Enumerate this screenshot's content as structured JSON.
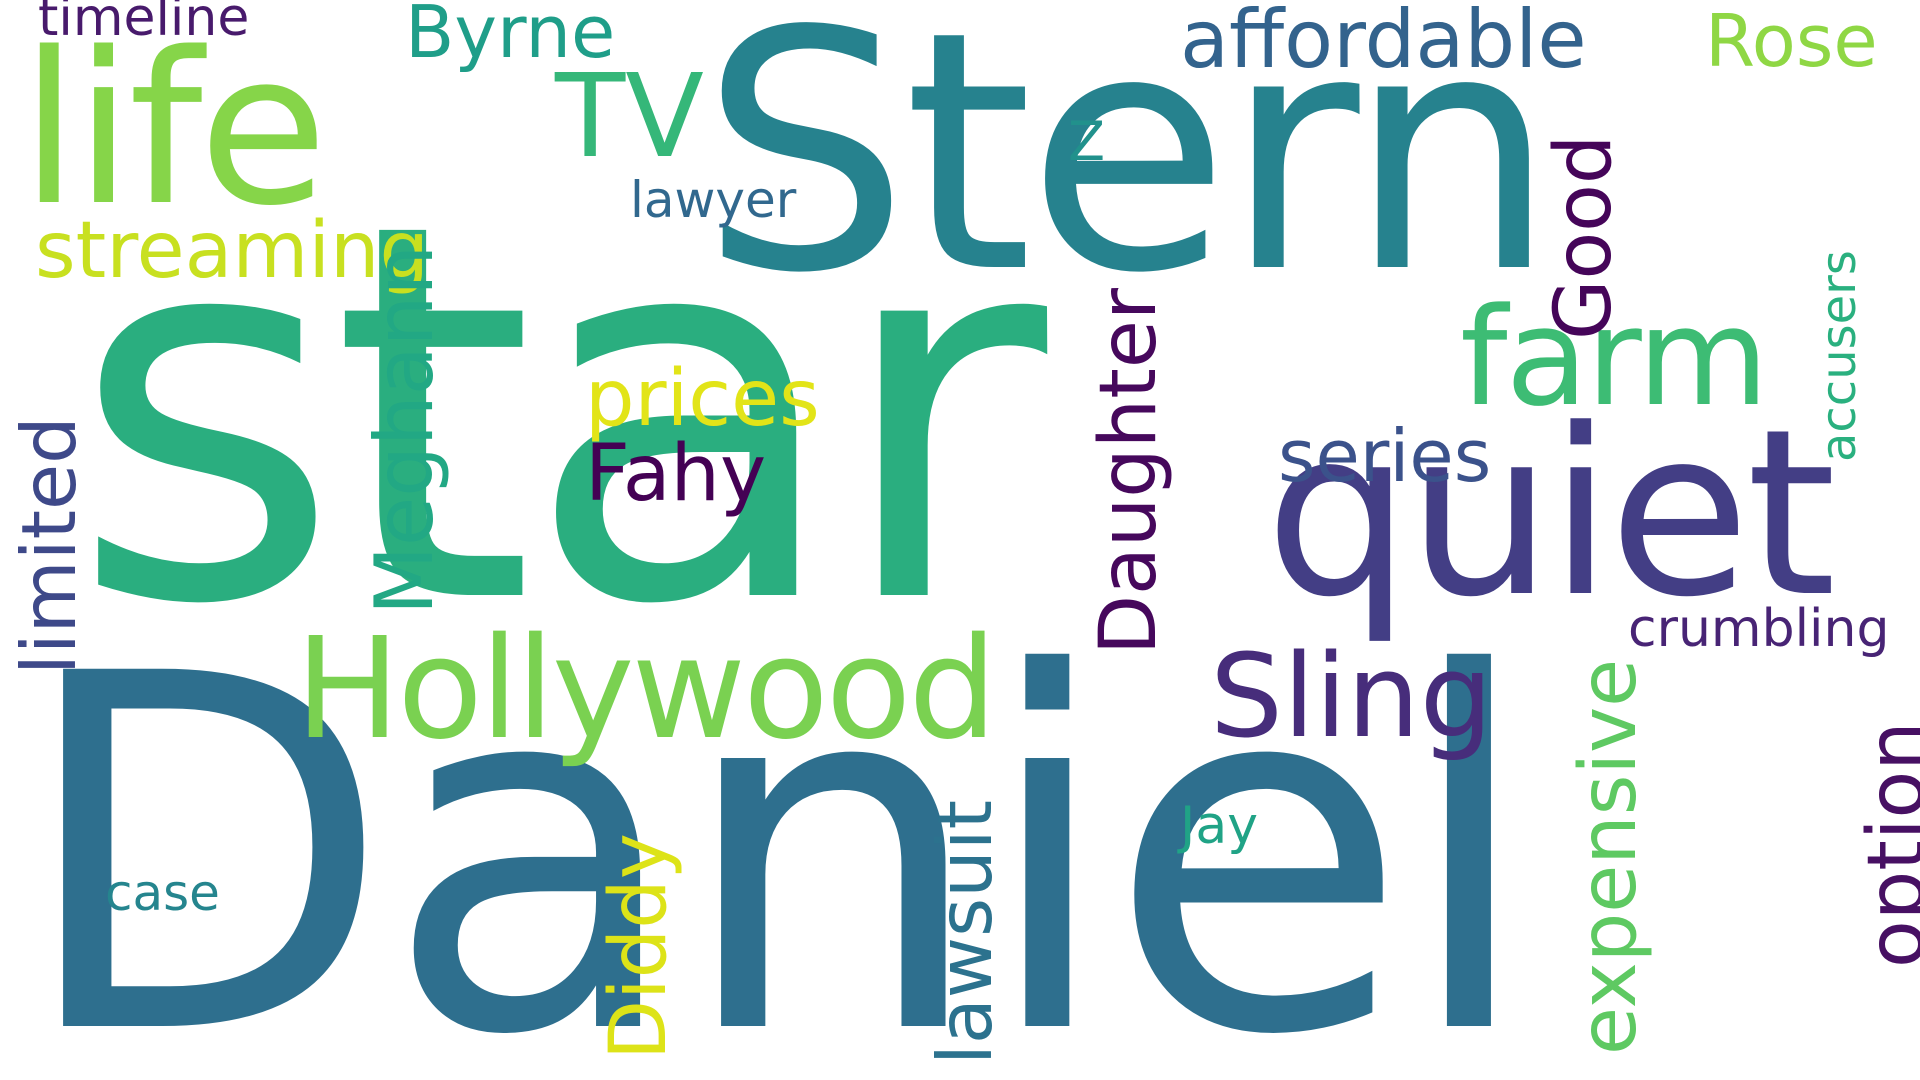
{
  "words": {
    "star": {
      "text": "star",
      "color": "#2aae7f"
    },
    "daniel": {
      "text": "Daniel",
      "color": "#2e6f8e"
    },
    "stern": {
      "text": "Stern",
      "color": "#26828e"
    },
    "life": {
      "text": "life",
      "color": "#86d549"
    },
    "quiet": {
      "text": "quiet",
      "color": "#433e85"
    },
    "hollywood": {
      "text": "Hollywood",
      "color": "#7ad151"
    },
    "farm": {
      "text": "farm",
      "color": "#3dbc74"
    },
    "tv": {
      "text": "TV",
      "color": "#35b779"
    },
    "sling": {
      "text": "Sling",
      "color": "#472d7b"
    },
    "affordable": {
      "text": "affordable",
      "color": "#33638d"
    },
    "byrne": {
      "text": "Byrne",
      "color": "#1f9e89"
    },
    "rose": {
      "text": "Rose",
      "color": "#8fd744"
    },
    "timeline": {
      "text": "timeline",
      "color": "#481a6c"
    },
    "streaming": {
      "text": "streaming",
      "color": "#c8e020"
    },
    "lawyer": {
      "text": "lawyer",
      "color": "#31688e"
    },
    "z": {
      "text": "Z",
      "color": "#21918c"
    },
    "prices": {
      "text": "prices",
      "color": "#e2e418"
    },
    "fahy": {
      "text": "Fahy",
      "color": "#440154"
    },
    "series": {
      "text": "series",
      "color": "#3b528b"
    },
    "crumbling": {
      "text": "crumbling",
      "color": "#482475"
    },
    "jay": {
      "text": "Jay",
      "color": "#20a386"
    },
    "case": {
      "text": "case",
      "color": "#25858e"
    },
    "limited": {
      "text": "limited",
      "color": "#3e4989"
    },
    "meghann": {
      "text": "Meghann",
      "color": "#22a884"
    },
    "daughter": {
      "text": "Daughter",
      "color": "#46085c"
    },
    "good": {
      "text": "Good",
      "color": "#450559"
    },
    "accusers": {
      "text": "accusers",
      "color": "#2ab07f"
    },
    "expensive": {
      "text": "expensive",
      "color": "#5ec962"
    },
    "option": {
      "text": "option",
      "color": "#471063"
    },
    "lawsuit": {
      "text": "lawsuit",
      "color": "#2c728e"
    },
    "diddy": {
      "text": "Diddy",
      "color": "#dde318"
    }
  }
}
